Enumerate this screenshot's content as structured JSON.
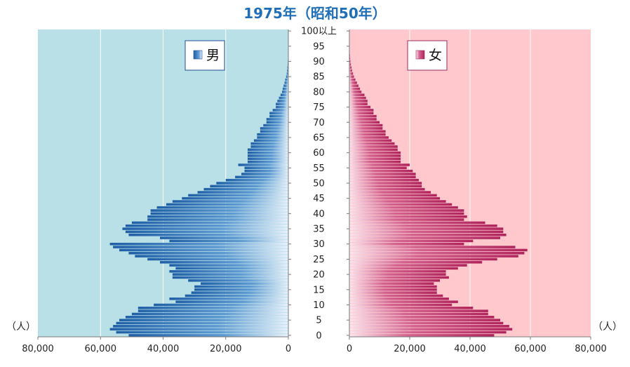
{
  "chart_data": {
    "type": "bar",
    "title": "1975年（昭和50年）",
    "unit_left": "（人）",
    "unit_right": "（人）",
    "xlim": [
      0,
      80000
    ],
    "x_ticks": [
      "80,000",
      "60,000",
      "40,000",
      "20,000",
      "0"
    ],
    "x_ticks_right": [
      "0",
      "20,000",
      "40,000",
      "60,000",
      "80,000"
    ],
    "age_labels": [
      "0",
      "5",
      "10",
      "15",
      "20",
      "25",
      "30",
      "35",
      "40",
      "45",
      "50",
      "55",
      "60",
      "65",
      "70",
      "75",
      "80",
      "85",
      "90",
      "95",
      "100以上"
    ],
    "grid": true,
    "male": {
      "name": "男",
      "values": [
        51000,
        55000,
        57000,
        56000,
        55000,
        54000,
        52000,
        50000,
        48000,
        48000,
        43000,
        36000,
        38000,
        33000,
        31000,
        30000,
        30000,
        28000,
        32000,
        37000,
        37000,
        38000,
        36000,
        38000,
        41000,
        45000,
        49000,
        51000,
        54000,
        56000,
        57000,
        38000,
        41000,
        51000,
        52000,
        53000,
        52000,
        50000,
        45000,
        45000,
        44000,
        44000,
        42000,
        39000,
        37000,
        34000,
        32000,
        29000,
        27000,
        25000,
        23000,
        20000,
        17000,
        15000,
        14000,
        14000,
        16000,
        13000,
        13000,
        13000,
        13000,
        13000,
        12000,
        12000,
        11000,
        10000,
        10000,
        9000,
        9000,
        8000,
        7000,
        7000,
        6000,
        6000,
        5000,
        4000,
        4000,
        3500,
        3000,
        2500,
        2000,
        1800,
        1500,
        1200,
        1000,
        700,
        500,
        400,
        300,
        200,
        150,
        100,
        80,
        60,
        40,
        30,
        20,
        10,
        5,
        3,
        2
      ]
    },
    "female": {
      "name": "女",
      "values": [
        48000,
        52000,
        54000,
        53000,
        51000,
        50000,
        48000,
        46000,
        46000,
        41000,
        34000,
        36000,
        33000,
        31000,
        29000,
        29000,
        29000,
        28000,
        30000,
        33000,
        32000,
        32000,
        36000,
        39000,
        44000,
        49000,
        56000,
        58000,
        59000,
        55000,
        38000,
        41000,
        50000,
        52000,
        51000,
        51000,
        49000,
        45000,
        38000,
        39000,
        38000,
        38000,
        36000,
        34000,
        32000,
        30000,
        29000,
        27000,
        25000,
        24000,
        24000,
        23000,
        22000,
        22000,
        21000,
        19000,
        20000,
        17000,
        17000,
        17000,
        17000,
        16000,
        16000,
        15000,
        14000,
        13000,
        12000,
        12000,
        11000,
        11000,
        10000,
        9000,
        9000,
        8000,
        8000,
        7000,
        6000,
        6000,
        5500,
        5000,
        4000,
        3500,
        3000,
        2500,
        2000,
        1500,
        1200,
        900,
        700,
        500,
        350,
        250,
        180,
        120,
        80,
        50,
        30,
        20,
        10,
        5,
        3
      ]
    },
    "colors": {
      "male_bg": "#b9dfe7",
      "female_bg": "#fec8cd",
      "male_bar": "#2263a8",
      "female_bar": "#b82a63",
      "title": "#1f6fb8"
    }
  }
}
